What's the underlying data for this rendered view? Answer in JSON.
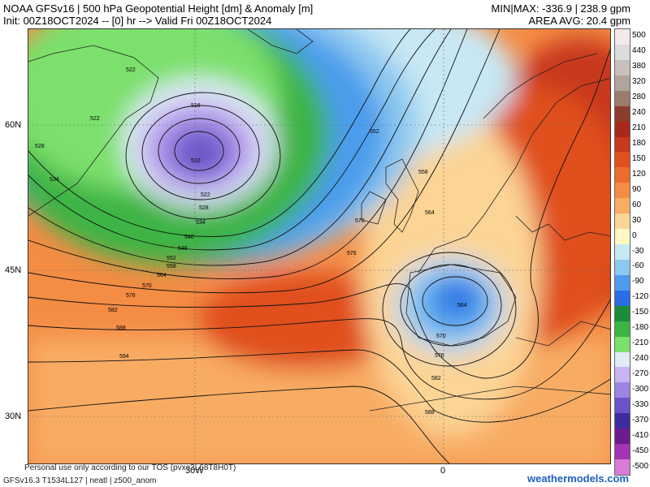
{
  "header": {
    "title_line1": "NOAA GFSv16 | 500 hPa Geopotential Height [dm] & Anomaly [m]",
    "title_line2": "Init: 00Z18OCT2024 -- [0] hr --> Valid Fri 00Z18OCT2024",
    "minmax": "MIN|MAX: -336.9 | 238.9 gpm",
    "area_avg": "AREA AVG: 20.4 gpm"
  },
  "axes": {
    "lat_labels": [
      "60N",
      "45N",
      "30N"
    ],
    "lon_labels": [
      "30W",
      "0"
    ]
  },
  "colorbar": {
    "labels": [
      "500",
      "440",
      "380",
      "320",
      "280",
      "240",
      "210",
      "180",
      "150",
      "120",
      "90",
      "60",
      "30",
      "0",
      "-30",
      "-60",
      "-90",
      "-120",
      "-150",
      "-180",
      "-210",
      "-240",
      "-270",
      "-300",
      "-330",
      "-370",
      "-410",
      "-450",
      "-500"
    ],
    "colors": [
      "#f4e9e9",
      "#dcdcdc",
      "#c8c0bc",
      "#b0a49c",
      "#9c7c6c",
      "#8c3c2c",
      "#a8281c",
      "#c8381c",
      "#e0501c",
      "#ec6c2c",
      "#f48c44",
      "#f8ac64",
      "#fcd494",
      "#fff8c4",
      "#c8e8f4",
      "#8cc8f0",
      "#4c9cec",
      "#2c6ce4",
      "#1c8c3c",
      "#3cb444",
      "#7ce06c",
      "#e0ecf8",
      "#c8b4f0",
      "#9c84e4",
      "#6c54c8",
      "#3c2c9c",
      "#6c1c8c",
      "#a434b4",
      "#d87cd8"
    ]
  },
  "contour_labels": [
    "522",
    "522",
    "528",
    "534",
    "516",
    "510",
    "522",
    "528",
    "534",
    "540",
    "546",
    "552",
    "558",
    "564",
    "570",
    "576",
    "582",
    "588",
    "594",
    "552",
    "558",
    "564",
    "570",
    "576",
    "564",
    "570",
    "576",
    "582",
    "588"
  ],
  "footer": {
    "tos": "Personal use only according to our TOS (pvxe3L68T8H0T)",
    "model_info": "GFSv16.3 T1534L127 | neatl | z500_anom",
    "brand": "weathermodels.com"
  }
}
